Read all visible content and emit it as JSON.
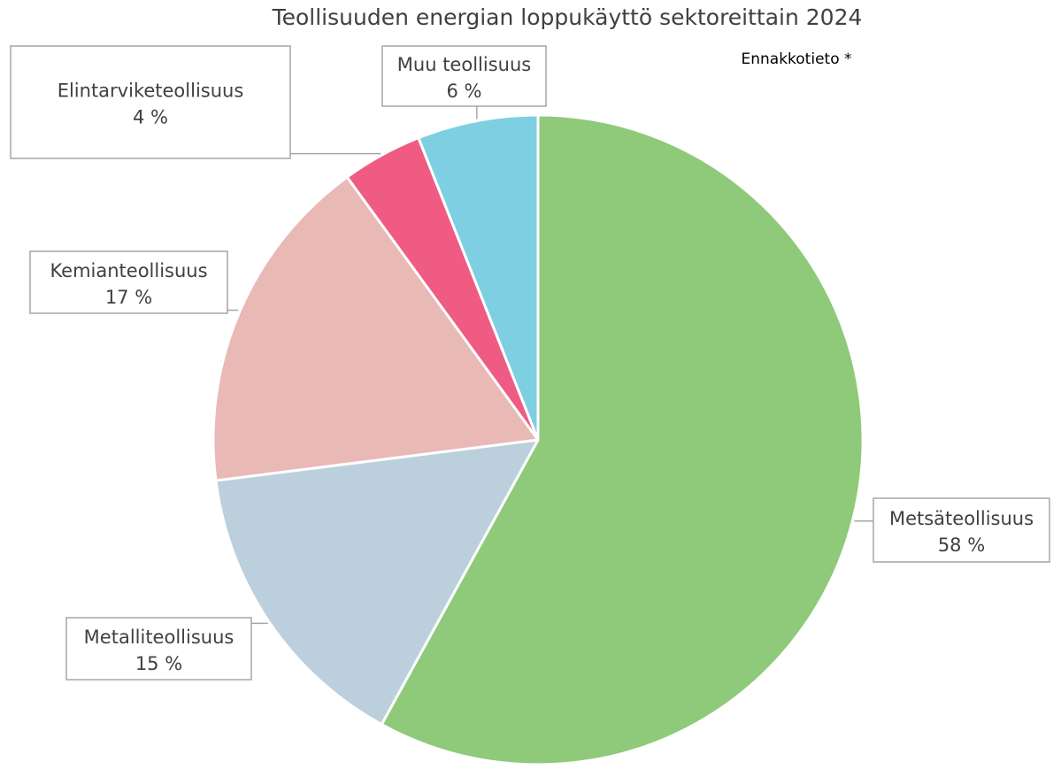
{
  "chart_data": {
    "type": "pie",
    "title": "Teollisuuden energian loppukäyttö sektoreittain 2024",
    "note": "Ennakkotieto *",
    "slices": [
      {
        "label": "Metsäteollisuus",
        "value": 58,
        "value_label": "58 %",
        "color": "#8fc97a"
      },
      {
        "label": "Metalliteollisuus",
        "value": 15,
        "value_label": "15 %",
        "color": "#bccfdc"
      },
      {
        "label": "Kemianteollisuus",
        "value": 17,
        "value_label": "17 %",
        "color": "#e9b9b5"
      },
      {
        "label": "Elintarviketeollisuus",
        "value": 4,
        "value_label": "4 %",
        "color": "#ef5b83"
      },
      {
        "label": "Muu teollisuus",
        "value": 6,
        "value_label": "6 %",
        "color": "#7ecfe1"
      }
    ],
    "start_angle_deg": 0,
    "direction": "clockwise"
  }
}
